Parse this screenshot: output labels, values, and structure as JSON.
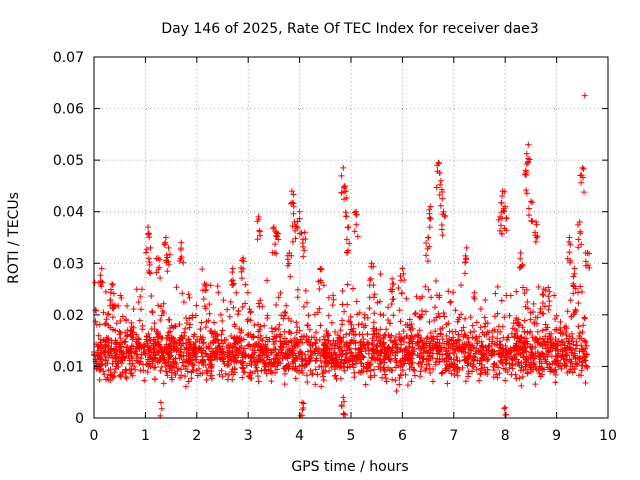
{
  "chart_data": {
    "type": "scatter",
    "title": "Day 146 of 2025, Rate Of TEC Index for receiver dae3",
    "xlabel": "GPS time / hours",
    "ylabel": "ROTI / TECUs",
    "xlim": [
      0,
      10
    ],
    "ylim": [
      0,
      0.07
    ],
    "xticks": [
      "0",
      "1",
      "2",
      "3",
      "4",
      "5",
      "6",
      "7",
      "8",
      "9",
      "10"
    ],
    "yticks": [
      "0",
      "0.01",
      "0.02",
      "0.03",
      "0.04",
      "0.05",
      "0.06",
      "0.07"
    ],
    "grid": true,
    "marker": "plus",
    "color": "#ff0000",
    "series": [
      {
        "name": "ROTI",
        "data_extent_hours": [
          0.0,
          9.6
        ],
        "typical_range": [
          0.005,
          0.02
        ],
        "max_point": [
          9.55,
          0.0625
        ],
        "notable_points": [
          [
            0.15,
            0.029
          ],
          [
            0.35,
            0.026
          ],
          [
            1.05,
            0.037
          ],
          [
            1.1,
            0.033
          ],
          [
            1.25,
            0.031
          ],
          [
            1.4,
            0.035
          ],
          [
            1.45,
            0.033
          ],
          [
            1.7,
            0.034
          ],
          [
            2.15,
            0.026
          ],
          [
            2.7,
            0.029
          ],
          [
            2.9,
            0.031
          ],
          [
            3.2,
            0.039
          ],
          [
            3.5,
            0.037
          ],
          [
            3.55,
            0.036
          ],
          [
            3.8,
            0.032
          ],
          [
            3.85,
            0.044
          ],
          [
            3.9,
            0.038
          ],
          [
            4.0,
            0.04
          ],
          [
            4.1,
            0.036
          ],
          [
            4.4,
            0.029
          ],
          [
            4.85,
            0.0485
          ],
          [
            4.9,
            0.044
          ],
          [
            4.95,
            0.037
          ],
          [
            5.1,
            0.04
          ],
          [
            5.4,
            0.03
          ],
          [
            5.8,
            0.027
          ],
          [
            6.0,
            0.029
          ],
          [
            6.5,
            0.035
          ],
          [
            6.55,
            0.041
          ],
          [
            6.7,
            0.0495
          ],
          [
            6.75,
            0.046
          ],
          [
            6.8,
            0.04
          ],
          [
            7.25,
            0.033
          ],
          [
            7.9,
            0.039
          ],
          [
            7.95,
            0.044
          ],
          [
            8.0,
            0.041
          ],
          [
            8.3,
            0.032
          ],
          [
            8.4,
            0.048
          ],
          [
            8.45,
            0.053
          ],
          [
            8.5,
            0.042
          ],
          [
            8.6,
            0.038
          ],
          [
            8.75,
            0.025
          ],
          [
            9.25,
            0.035
          ],
          [
            9.35,
            0.029
          ],
          [
            9.45,
            0.038
          ],
          [
            9.5,
            0.0485
          ],
          [
            9.6,
            0.032
          ],
          [
            8.0,
            0.002
          ],
          [
            1.3,
            0.003
          ],
          [
            4.05,
            0.003
          ],
          [
            4.85,
            0.004
          ]
        ]
      }
    ]
  }
}
